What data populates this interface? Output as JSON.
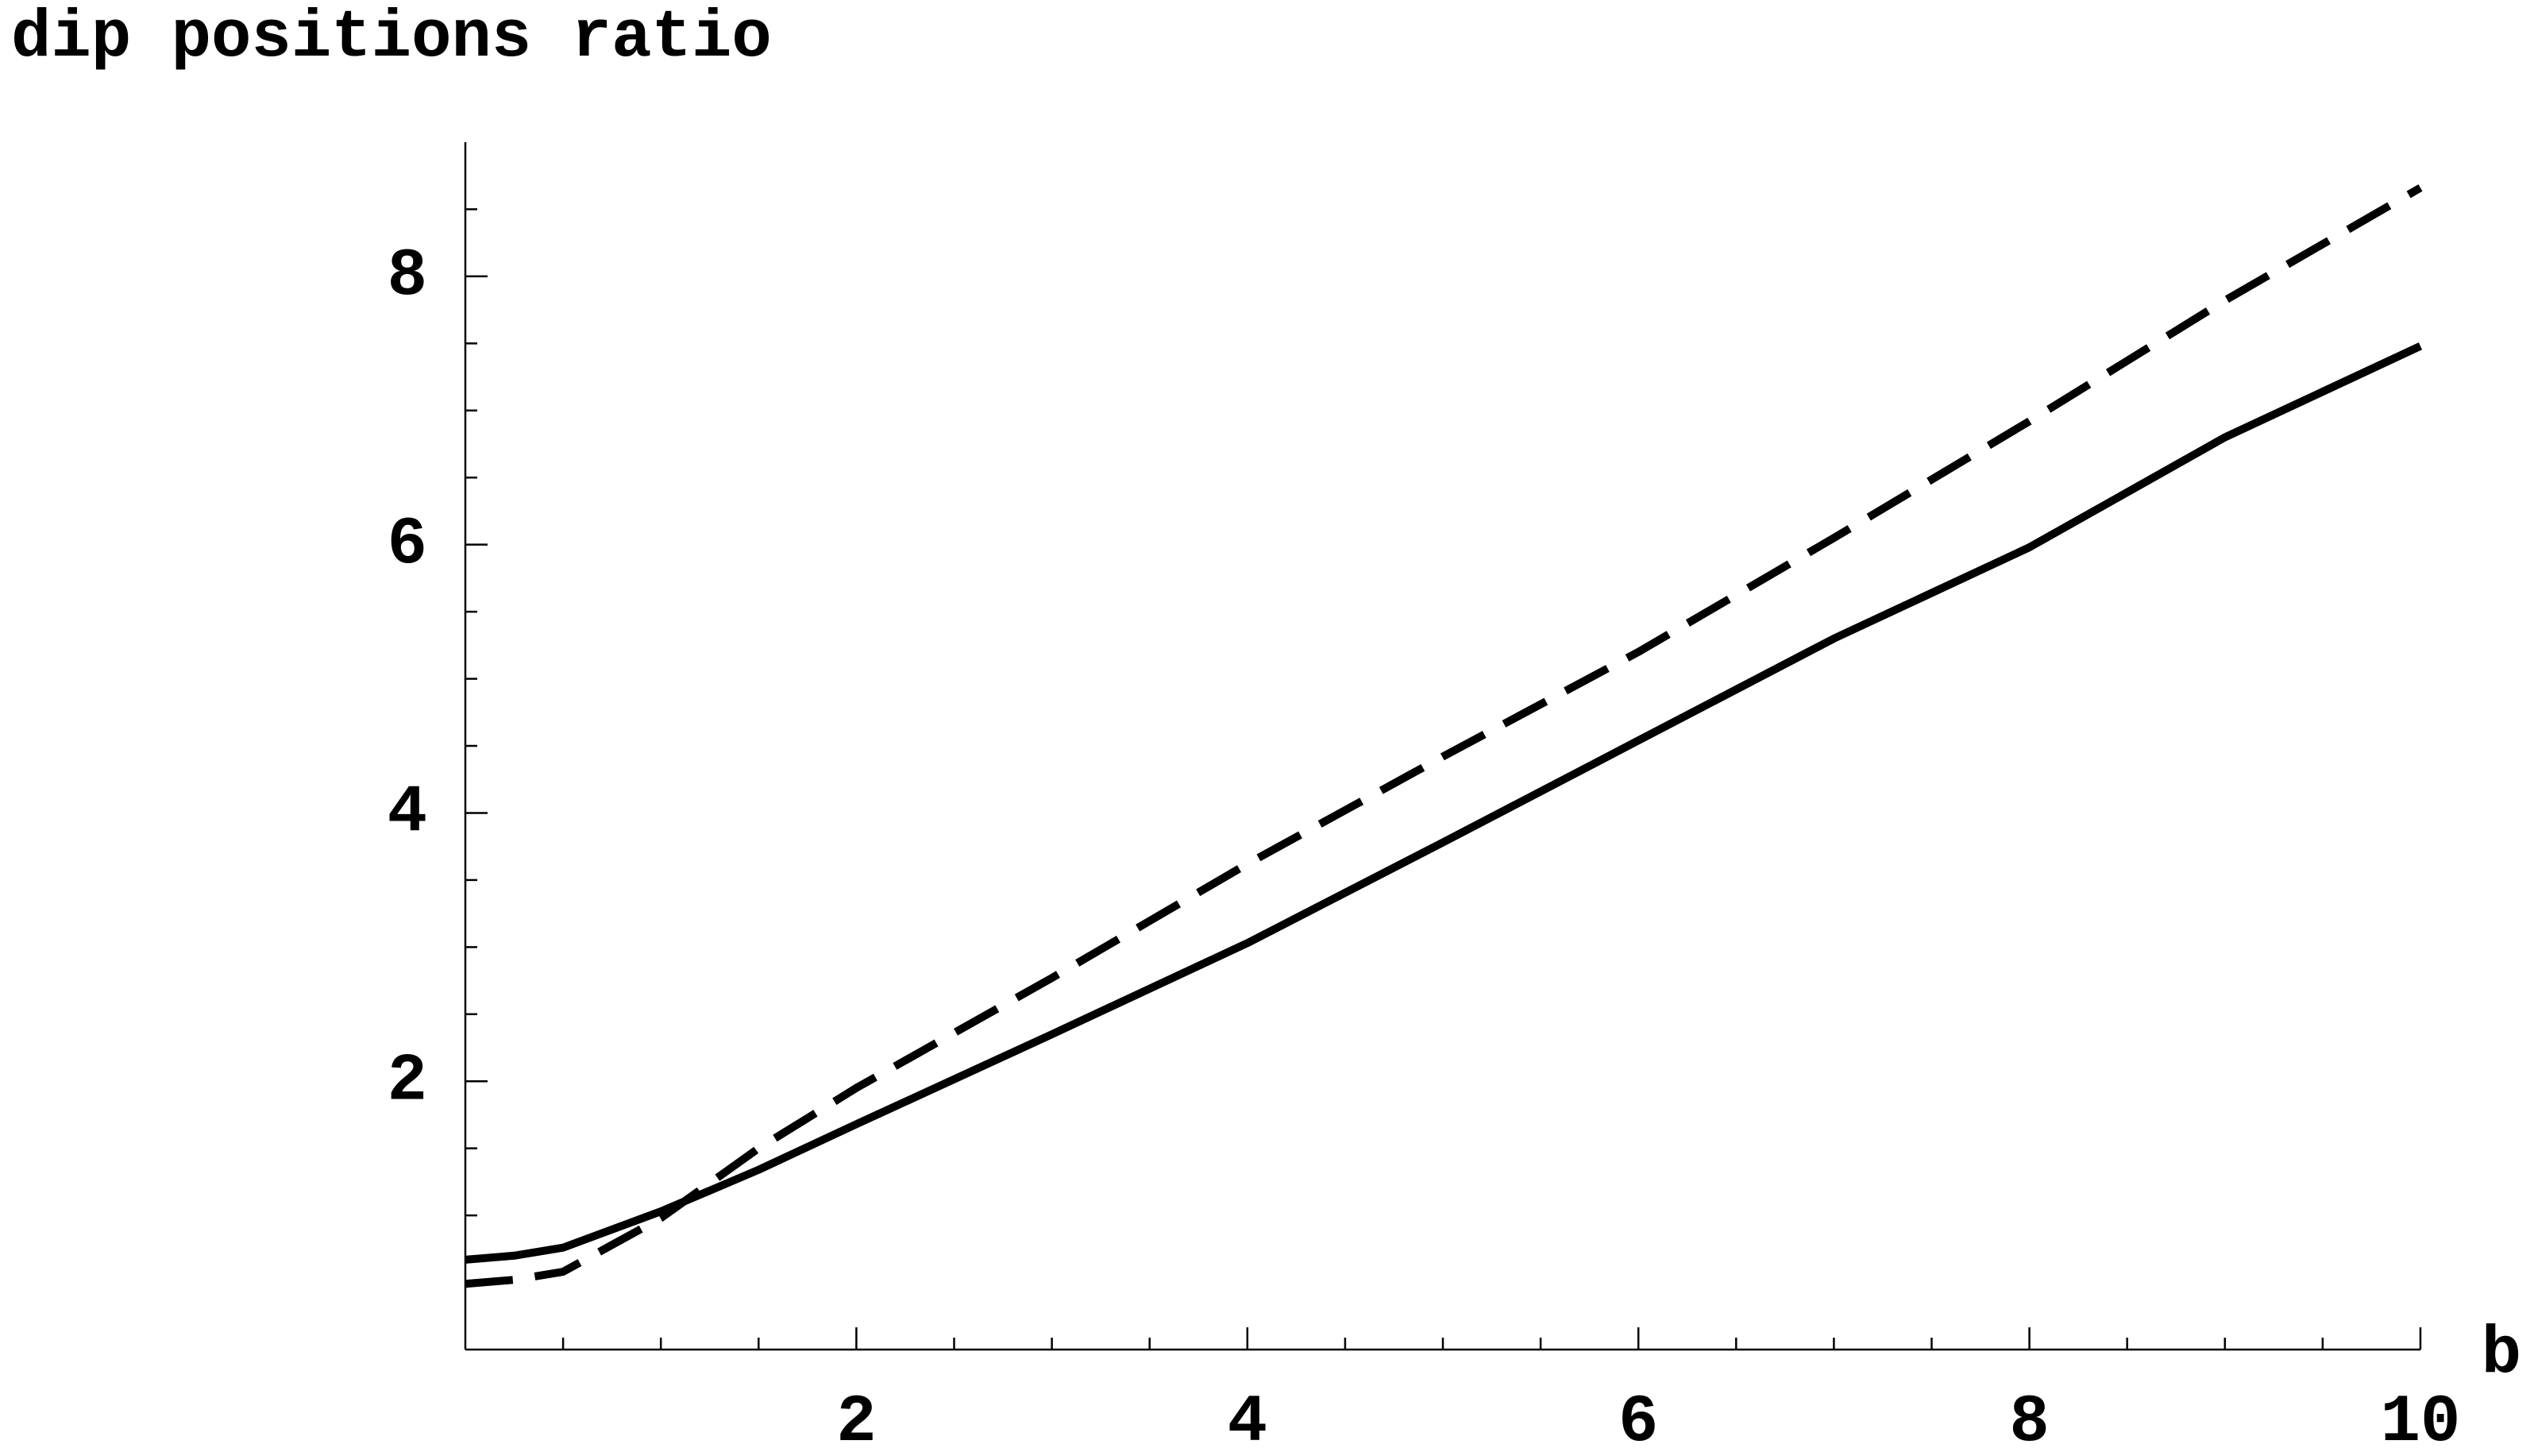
{
  "chart_data": {
    "type": "line",
    "y_label": "dip positions ratio",
    "x_label": "b",
    "x": [
      0,
      0.25,
      0.5,
      1,
      1.5,
      2,
      3,
      4,
      5,
      6,
      7,
      8,
      9,
      10
    ],
    "series": [
      {
        "color": "#000000",
        "dashed": false,
        "values": [
          0.67,
          0.7,
          0.76,
          1.03,
          1.34,
          1.68,
          2.35,
          3.03,
          3.78,
          4.54,
          5.3,
          5.98,
          6.8,
          7.48
        ]
      },
      {
        "color": "#000000",
        "dashed": true,
        "values": [
          0.49,
          0.52,
          0.58,
          0.98,
          1.5,
          1.95,
          2.77,
          3.62,
          4.42,
          5.2,
          6.05,
          6.92,
          7.82,
          8.66
        ]
      }
    ],
    "xlim": [
      0,
      10
    ],
    "ylim": [
      0,
      9
    ],
    "xticks": [
      2,
      4,
      6,
      8,
      10
    ],
    "yticks": [
      2,
      4,
      6,
      8
    ],
    "xminorticks": [
      0.5,
      1,
      1.5,
      2.5,
      3,
      3.5,
      4.5,
      5,
      5.5,
      6.5,
      7,
      7.5,
      8.5,
      9,
      9.5
    ],
    "yminorticks": [
      0.5,
      1,
      1.5,
      2.5,
      3,
      3.5,
      4.5,
      5,
      5.5,
      6.5,
      7,
      7.5,
      8.5
    ],
    "grid": false
  }
}
